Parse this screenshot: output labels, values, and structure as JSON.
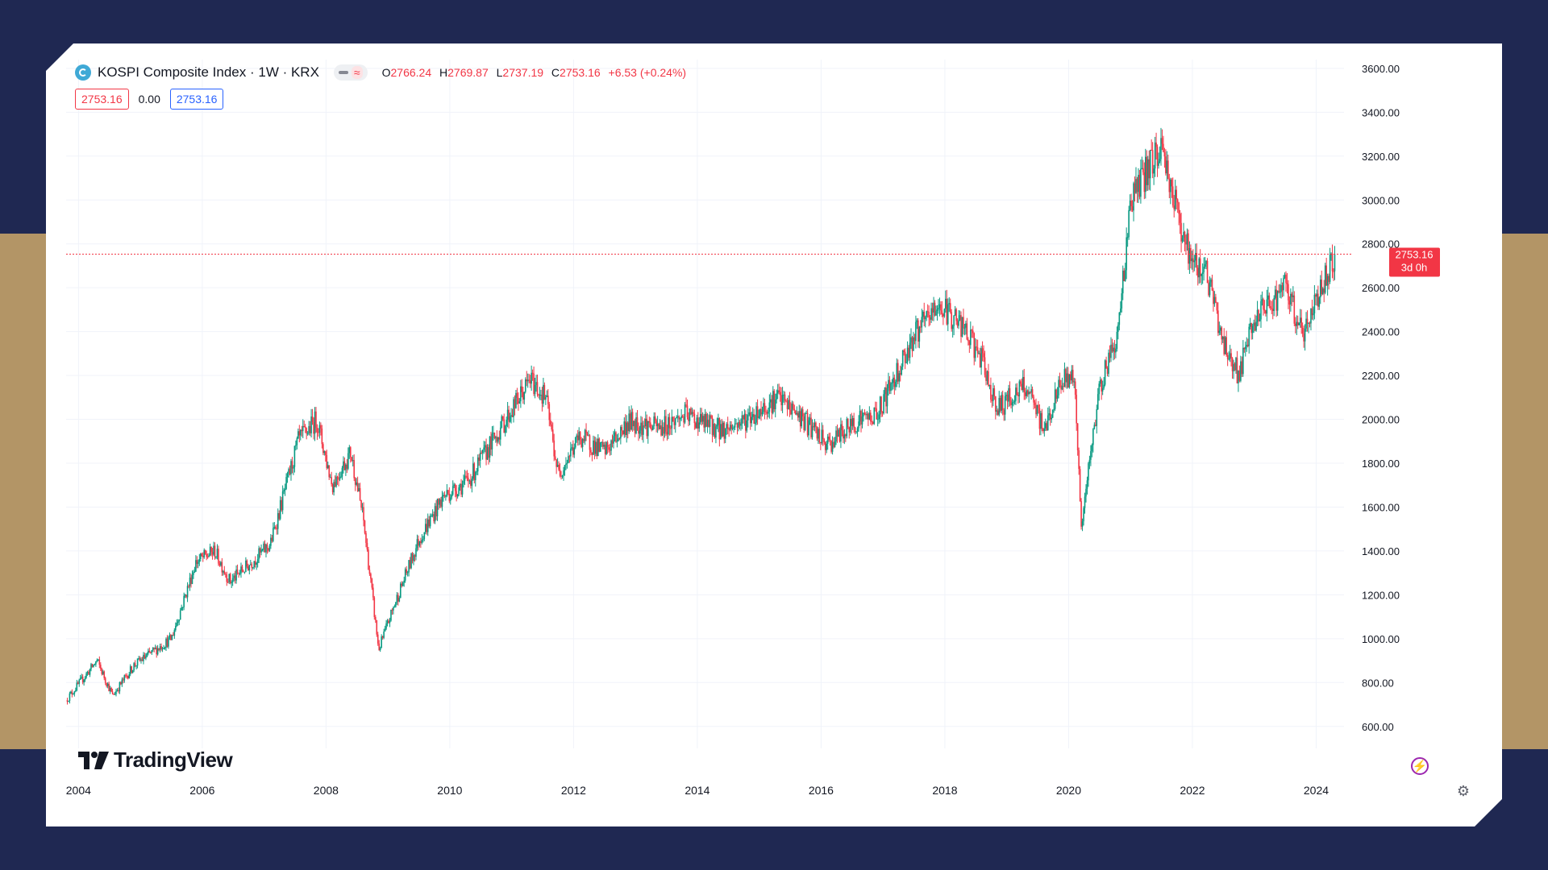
{
  "legend": {
    "symbol_title": "KOSPI Composite Index · 1W · KRX",
    "symbol_icon": "kospi-logo-icon",
    "open_label": "O",
    "open_value": "2766.24",
    "high_label": "H",
    "high_value": "2769.87",
    "low_label": "L",
    "low_value": "2737.19",
    "close_label": "C",
    "close_value": "2753.16",
    "change": "+6.53 (+0.24%)",
    "bid_box": "2753.16",
    "spread": "0.00",
    "ask_box": "2753.16"
  },
  "price_tag": {
    "price": "2753.16",
    "countdown": "3d 0h"
  },
  "branding": {
    "logo_text": "TradingView"
  },
  "icons": {
    "alert": "lightning-icon",
    "settings": "gear-icon"
  },
  "colors": {
    "up": "#089981",
    "down": "#f23645",
    "grid": "#f0f3fa",
    "background_frame": "#1f2852",
    "band": "#b39566"
  },
  "chart_data": {
    "type": "candlestick",
    "title": "KOSPI Composite Index · 1W · KRX",
    "xlabel": "",
    "ylabel": "",
    "x_ticks": [
      "2004",
      "2006",
      "2008",
      "2010",
      "2012",
      "2014",
      "2016",
      "2018",
      "2020",
      "2022",
      "2024"
    ],
    "y_ticks": [
      "600.00",
      "800.00",
      "1000.00",
      "1200.00",
      "1400.00",
      "1600.00",
      "1800.00",
      "2000.00",
      "2200.00",
      "2400.00",
      "2600.00",
      "2800.00",
      "3000.00",
      "3200.00",
      "3400.00",
      "3600.00"
    ],
    "xlim": [
      2003.8,
      2024.45
    ],
    "ylim": [
      500,
      3640
    ],
    "last_price": 2753.16,
    "grid": true,
    "series": [
      {
        "name": "KOSPI",
        "x": [
          2003.8,
          2004.3,
          2004.55,
          2004.9,
          2005.5,
          2005.9,
          2006.2,
          2006.45,
          2006.8,
          2007.1,
          2007.55,
          2007.85,
          2008.1,
          2008.4,
          2008.6,
          2008.85,
          2009.1,
          2009.5,
          2009.9,
          2010.3,
          2010.8,
          2011.3,
          2011.55,
          2011.75,
          2012.1,
          2012.5,
          2012.9,
          2013.4,
          2013.8,
          2014.4,
          2014.8,
          2015.3,
          2015.6,
          2016.1,
          2016.6,
          2016.9,
          2017.5,
          2017.9,
          2018.2,
          2018.55,
          2018.85,
          2019.3,
          2019.6,
          2019.9,
          2020.1,
          2020.2,
          2020.5,
          2020.8,
          2021.0,
          2021.2,
          2021.5,
          2021.75,
          2022.0,
          2022.2,
          2022.5,
          2022.75,
          2023.0,
          2023.5,
          2023.8,
          2024.0,
          2024.3
        ],
        "y": [
          720,
          900,
          740,
          880,
          1000,
          1350,
          1400,
          1260,
          1350,
          1430,
          1900,
          2000,
          1700,
          1850,
          1550,
          950,
          1150,
          1450,
          1650,
          1720,
          1950,
          2180,
          2100,
          1750,
          1920,
          1850,
          1990,
          1960,
          2020,
          1950,
          2000,
          2100,
          2030,
          1880,
          2000,
          2020,
          2380,
          2520,
          2450,
          2300,
          2050,
          2150,
          1950,
          2180,
          2200,
          1500,
          2150,
          2400,
          3000,
          3100,
          3250,
          2950,
          2700,
          2700,
          2350,
          2200,
          2450,
          2600,
          2380,
          2550,
          2753
        ]
      }
    ]
  }
}
